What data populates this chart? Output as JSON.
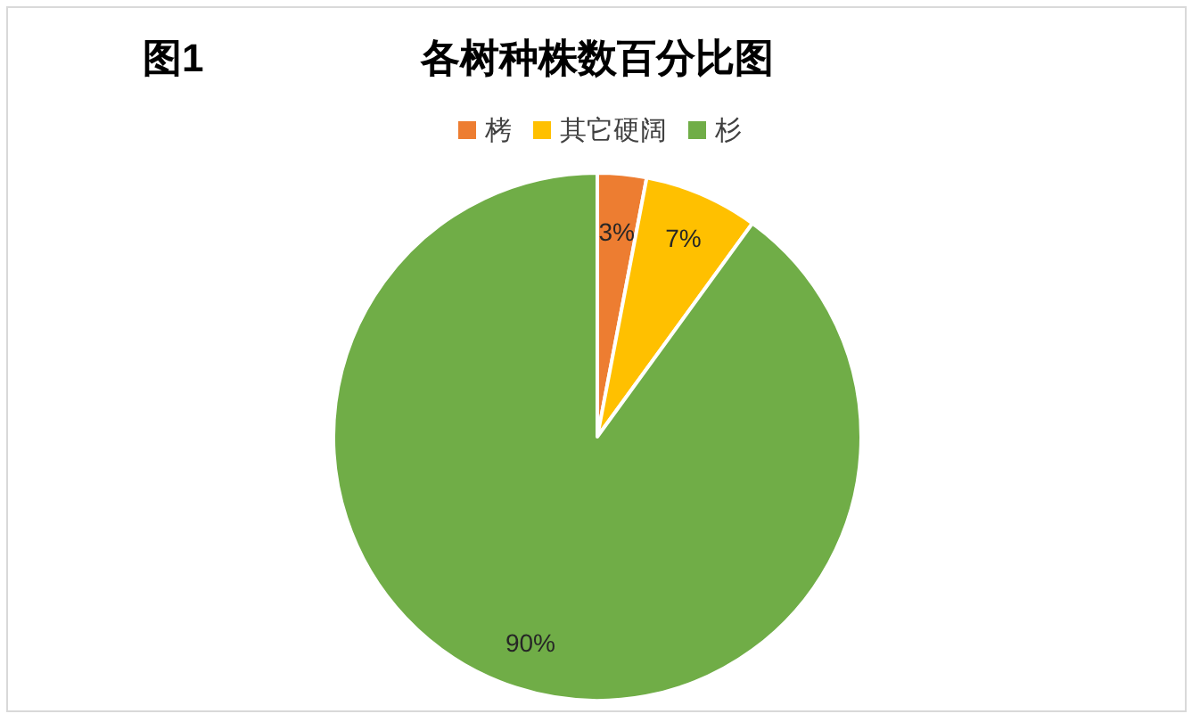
{
  "chart_data": {
    "type": "pie",
    "title": "各树种株数百分比图",
    "annotations": [
      "图1"
    ],
    "categories": [
      "栲",
      "其它硬阔",
      "杉"
    ],
    "values": [
      3,
      7,
      90
    ],
    "value_labels": [
      "3%",
      "7%",
      "90%"
    ],
    "colors": [
      "#ed7d31",
      "#ffc000",
      "#70ad47"
    ],
    "legend": "top"
  }
}
